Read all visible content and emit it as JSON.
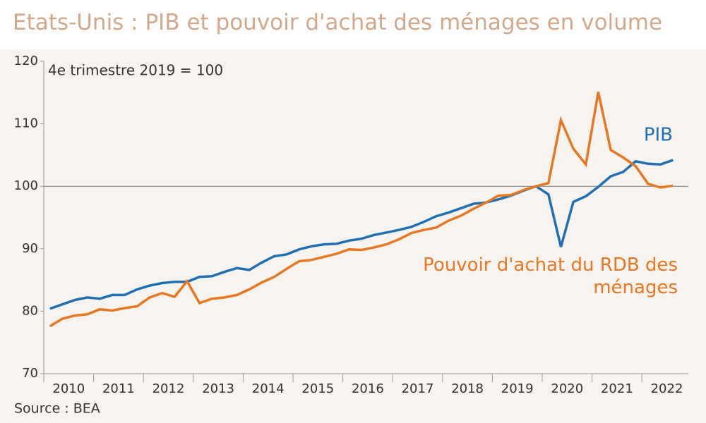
{
  "chart_data": {
    "type": "line",
    "title": "Etats-Unis : PIB et pouvoir d'achat des ménages en volume",
    "subtitle": "4e trimestre 2019 = 100",
    "source": "Source : BEA",
    "categories": [
      "2010",
      null,
      null,
      null,
      "2011",
      null,
      null,
      null,
      "2012",
      null,
      null,
      null,
      "2013",
      null,
      null,
      null,
      "2014",
      null,
      null,
      null,
      "2015",
      null,
      null,
      null,
      "2016",
      null,
      null,
      null,
      "2017",
      null,
      null,
      null,
      "2018",
      null,
      null,
      null,
      "2019",
      null,
      null,
      null,
      "2020",
      null,
      null,
      null,
      "2021",
      null,
      null,
      null,
      "2022",
      null,
      null
    ],
    "series": [
      {
        "name": "PIB",
        "color": "#1f6fb5",
        "values": [
          80.4,
          81.1,
          81.8,
          82.2,
          82.0,
          82.6,
          82.6,
          83.5,
          84.1,
          84.5,
          84.7,
          84.7,
          85.5,
          85.6,
          86.3,
          86.9,
          86.6,
          87.8,
          88.8,
          89.1,
          89.9,
          90.4,
          90.7,
          90.8,
          91.3,
          91.6,
          92.2,
          92.6,
          93.0,
          93.5,
          94.3,
          95.2,
          95.8,
          96.5,
          97.2,
          97.4,
          97.9,
          98.5,
          99.3,
          100.0,
          98.7,
          90.3,
          97.5,
          98.4,
          99.9,
          101.6,
          102.3,
          104.0,
          103.6,
          103.5,
          104.2
        ]
      },
      {
        "name": "Pouvoir d'achat du RDB des ménages",
        "color": "#e87722",
        "values": [
          77.6,
          78.8,
          79.3,
          79.5,
          80.3,
          80.1,
          80.5,
          80.8,
          82.2,
          82.9,
          82.3,
          84.8,
          81.3,
          82.0,
          82.2,
          82.6,
          83.5,
          84.6,
          85.5,
          86.8,
          88.0,
          88.2,
          88.7,
          89.2,
          89.9,
          89.8,
          90.2,
          90.7,
          91.5,
          92.5,
          93.0,
          93.4,
          94.5,
          95.3,
          96.4,
          97.4,
          98.5,
          98.6,
          99.4,
          100.0,
          100.5,
          110.6,
          106.0,
          103.5,
          115.1,
          105.8,
          104.6,
          103.2,
          100.4,
          99.8,
          100.1
        ]
      }
    ],
    "reference_line": 100,
    "ylim": [
      70,
      120
    ],
    "yticks": [
      70,
      80,
      90,
      100,
      110,
      120
    ]
  }
}
